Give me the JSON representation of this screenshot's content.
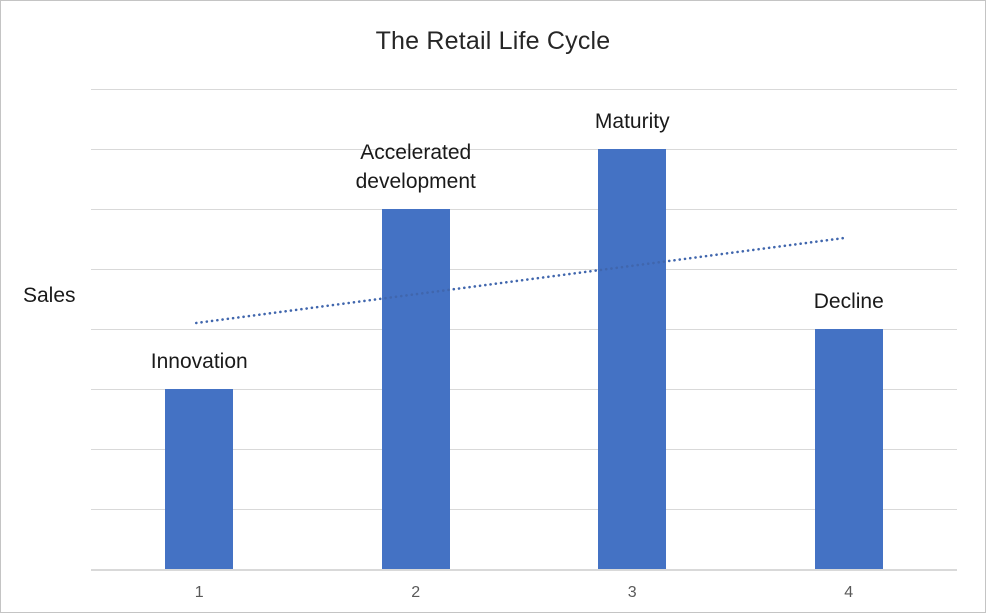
{
  "title": "The Retail Life Cycle",
  "colors": {
    "bar": "#4472c4",
    "trendline": "#4066ad",
    "gridline": "#d9d9d9",
    "tick_label": "#595959",
    "title_text": "#262626",
    "label_text": "#1a1a1a",
    "frame_border": "#c4c4c4"
  },
  "chart_data": {
    "type": "bar",
    "title": "The Retail Life Cycle",
    "xlabel": "",
    "ylabel": "Sales",
    "categories": [
      "1",
      "2",
      "3",
      "4"
    ],
    "values": [
      3,
      6,
      7,
      4
    ],
    "bar_labels": [
      "Innovation",
      "Accelerated\ndevelopment",
      "Maturity",
      "Decline"
    ],
    "ylim": [
      0,
      8
    ],
    "gridline_interval": 1,
    "grid": true,
    "legend": false,
    "y_tick_labels_shown": false,
    "trendline": {
      "style": "dotted",
      "start_category": "1",
      "end_category": "4",
      "start_value": 4.1,
      "end_value": 5.52
    }
  }
}
